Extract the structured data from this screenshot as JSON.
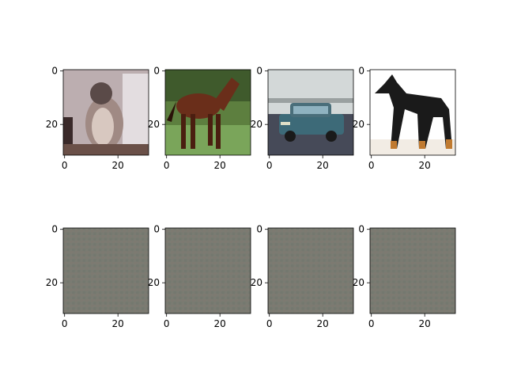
{
  "chart_data": [
    {
      "type": "image",
      "row": "top",
      "description_key": "cat",
      "xlim": [
        -0.5,
        31.5
      ],
      "ylim": [
        31.5,
        -0.5
      ],
      "xticks": [
        "0",
        "20"
      ],
      "yticks": [
        "0",
        "20"
      ]
    },
    {
      "type": "image",
      "row": "top",
      "description_key": "horse",
      "xlim": [
        -0.5,
        31.5
      ],
      "ylim": [
        31.5,
        -0.5
      ],
      "xticks": [
        "0",
        "20"
      ],
      "yticks": [
        "0",
        "20"
      ]
    },
    {
      "type": "image",
      "row": "top",
      "description_key": "car",
      "xlim": [
        -0.5,
        31.5
      ],
      "ylim": [
        31.5,
        -0.5
      ],
      "xticks": [
        "0",
        "20"
      ],
      "yticks": [
        "0",
        "20"
      ]
    },
    {
      "type": "image",
      "row": "top",
      "description_key": "dog",
      "xlim": [
        -0.5,
        31.5
      ],
      "ylim": [
        31.5,
        -0.5
      ],
      "xticks": [
        "0",
        "20"
      ],
      "yticks": [
        "0",
        "20"
      ]
    },
    {
      "type": "image",
      "row": "bottom",
      "description_key": "noise",
      "xlim": [
        -0.5,
        31.5
      ],
      "ylim": [
        31.5,
        -0.5
      ],
      "xticks": [
        "0",
        "20"
      ],
      "yticks": [
        "0",
        "20"
      ]
    },
    {
      "type": "image",
      "row": "bottom",
      "description_key": "noise",
      "xlim": [
        -0.5,
        31.5
      ],
      "ylim": [
        31.5,
        -0.5
      ],
      "xticks": [
        "0",
        "20"
      ],
      "yticks": [
        "0",
        "20"
      ]
    },
    {
      "type": "image",
      "row": "bottom",
      "description_key": "noise",
      "xlim": [
        -0.5,
        31.5
      ],
      "ylim": [
        31.5,
        -0.5
      ],
      "xticks": [
        "0",
        "20"
      ],
      "yticks": [
        "0",
        "20"
      ]
    },
    {
      "type": "image",
      "row": "bottom",
      "description_key": "noise",
      "xlim": [
        -0.5,
        31.5
      ],
      "ylim": [
        31.5,
        -0.5
      ],
      "xticks": [
        "0",
        "20"
      ],
      "yticks": [
        "0",
        "20"
      ]
    }
  ],
  "colors": {
    "axis": "#000000",
    "background": "#ffffff",
    "noise_base": "#7a7c72"
  }
}
